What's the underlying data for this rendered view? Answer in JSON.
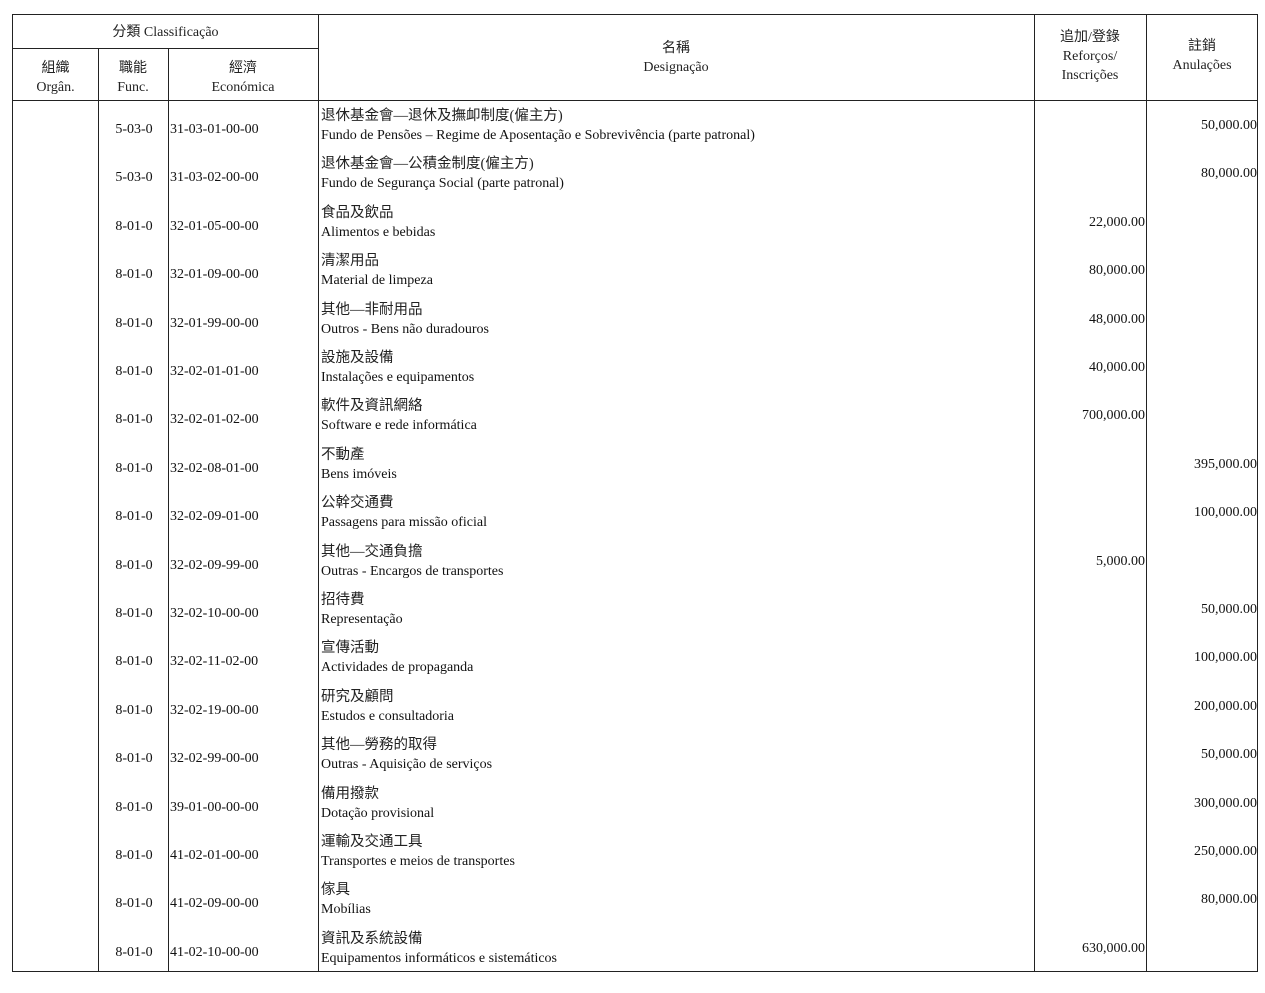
{
  "header": {
    "classification": "分類 Classificação",
    "organ_zh": "組織",
    "organ_pt": "Orgân.",
    "func_zh": "職能",
    "func_pt": "Func.",
    "econ_zh": "經濟",
    "econ_pt": "Económica",
    "desig_zh": "名稱",
    "desig_pt": "Designação",
    "reforcos_zh": "追加/登錄",
    "reforcos_pt1": "Reforços/",
    "reforcos_pt2": "Inscrições",
    "anul_zh": "註銷",
    "anul_pt": "Anulações"
  },
  "rows": [
    {
      "organ": "",
      "func": "5-03-0",
      "econ": "31-03-01-00-00",
      "zh": "退休基金會—退休及撫卹制度(僱主方)",
      "pt": "Fundo de Pensões – Regime de Aposentação e Sobrevivência (parte patronal)",
      "reforcos": "",
      "anulacoes": "50,000.00"
    },
    {
      "organ": "",
      "func": "5-03-0",
      "econ": "31-03-02-00-00",
      "zh": "退休基金會—公積金制度(僱主方)",
      "pt": "Fundo de Segurança Social (parte patronal)",
      "reforcos": "",
      "anulacoes": "80,000.00"
    },
    {
      "organ": "",
      "func": "8-01-0",
      "econ": "32-01-05-00-00",
      "zh": "食品及飲品",
      "pt": "Alimentos e bebidas",
      "reforcos": "22,000.00",
      "anulacoes": ""
    },
    {
      "organ": "",
      "func": "8-01-0",
      "econ": "32-01-09-00-00",
      "zh": "清潔用品",
      "pt": "Material de limpeza",
      "reforcos": "80,000.00",
      "anulacoes": ""
    },
    {
      "organ": "",
      "func": "8-01-0",
      "econ": "32-01-99-00-00",
      "zh": "其他—非耐用品",
      "pt": "Outros - Bens não duradouros",
      "reforcos": "48,000.00",
      "anulacoes": ""
    },
    {
      "organ": "",
      "func": "8-01-0",
      "econ": "32-02-01-01-00",
      "zh": "設施及設備",
      "pt": "Instalações e equipamentos",
      "reforcos": "40,000.00",
      "anulacoes": ""
    },
    {
      "organ": "",
      "func": "8-01-0",
      "econ": "32-02-01-02-00",
      "zh": "軟件及資訊網絡",
      "pt": "Software e rede informática",
      "reforcos": "700,000.00",
      "anulacoes": ""
    },
    {
      "organ": "",
      "func": "8-01-0",
      "econ": "32-02-08-01-00",
      "zh": "不動產",
      "pt": "Bens imóveis",
      "reforcos": "",
      "anulacoes": "395,000.00"
    },
    {
      "organ": "",
      "func": "8-01-0",
      "econ": "32-02-09-01-00",
      "zh": "公幹交通費",
      "pt": "Passagens para missão oficial",
      "reforcos": "",
      "anulacoes": "100,000.00"
    },
    {
      "organ": "",
      "func": "8-01-0",
      "econ": "32-02-09-99-00",
      "zh": "其他—交通負擔",
      "pt": "Outras - Encargos de transportes",
      "reforcos": "5,000.00",
      "anulacoes": ""
    },
    {
      "organ": "",
      "func": "8-01-0",
      "econ": "32-02-10-00-00",
      "zh": "招待費",
      "pt": "Representação",
      "reforcos": "",
      "anulacoes": "50,000.00"
    },
    {
      "organ": "",
      "func": "8-01-0",
      "econ": "32-02-11-02-00",
      "zh": "宣傳活動",
      "pt": "Actividades de propaganda",
      "reforcos": "",
      "anulacoes": "100,000.00"
    },
    {
      "organ": "",
      "func": "8-01-0",
      "econ": "32-02-19-00-00",
      "zh": "研究及顧問",
      "pt": "Estudos e consultadoria",
      "reforcos": "",
      "anulacoes": "200,000.00"
    },
    {
      "organ": "",
      "func": "8-01-0",
      "econ": "32-02-99-00-00",
      "zh": "其他—勞務的取得",
      "pt": "Outras - Aquisição de serviços",
      "reforcos": "",
      "anulacoes": "50,000.00"
    },
    {
      "organ": "",
      "func": "8-01-0",
      "econ": "39-01-00-00-00",
      "zh": "備用撥款",
      "pt": "Dotação provisional",
      "reforcos": "",
      "anulacoes": "300,000.00"
    },
    {
      "organ": "",
      "func": "8-01-0",
      "econ": "41-02-01-00-00",
      "zh": "運輸及交通工具",
      "pt": "Transportes e meios de transportes",
      "reforcos": "",
      "anulacoes": "250,000.00"
    },
    {
      "organ": "",
      "func": "8-01-0",
      "econ": "41-02-09-00-00",
      "zh": "傢具",
      "pt": "Mobílias",
      "reforcos": "",
      "anulacoes": "80,000.00"
    },
    {
      "organ": "",
      "func": "8-01-0",
      "econ": "41-02-10-00-00",
      "zh": "資訊及系統設備",
      "pt": "Equipamentos informáticos e sistemáticos",
      "reforcos": "630,000.00",
      "anulacoes": ""
    }
  ]
}
